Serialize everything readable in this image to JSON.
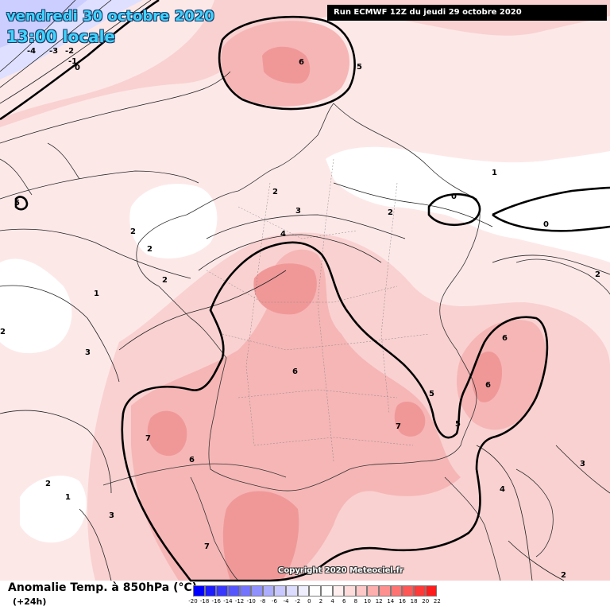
{
  "header": {
    "date": "vendredi 30 octobre 2020",
    "time": "13:00 locale",
    "run": "Run ECMWF 12Z du jeudi 29 octobre 2020"
  },
  "copyright": "Copyright 2020 Meteociel.fr",
  "legend": {
    "title": "Anomalie Temp. à 850hPa (°C)",
    "subtitle": "(+24h)",
    "ticks": [
      "-20",
      "-18",
      "-16",
      "-14",
      "-12",
      "-10",
      "-8",
      "-6",
      "-4",
      "-2",
      "0",
      "2",
      "4",
      "6",
      "8",
      "10",
      "12",
      "14",
      "16",
      "18",
      "20",
      "22"
    ],
    "colors": [
      "#0000ff",
      "#1c1cff",
      "#3838ff",
      "#5656ff",
      "#7373ff",
      "#9090ff",
      "#aeaeff",
      "#c8c8ff",
      "#dcdcff",
      "#eeeeff",
      "#ffffff",
      "#ffffff",
      "#ffeeee",
      "#ffdcdc",
      "#ffc8c8",
      "#ffaeae",
      "#ff9090",
      "#ff7373",
      "#ff5656",
      "#ff3838",
      "#ff1c1c",
      "#ff0000"
    ]
  },
  "contour_labels": [
    "-4",
    "-3",
    "-2",
    "-1",
    "0",
    "6",
    "5",
    "5",
    "1",
    "0",
    "0",
    "2",
    "2",
    "3",
    "2",
    "2",
    "4",
    "2",
    "2",
    "1",
    "2",
    "3",
    "6",
    "6",
    "6",
    "5",
    "5",
    "7",
    "7",
    "6",
    "2",
    "1",
    "3",
    "7",
    "4",
    "3",
    "2"
  ]
}
